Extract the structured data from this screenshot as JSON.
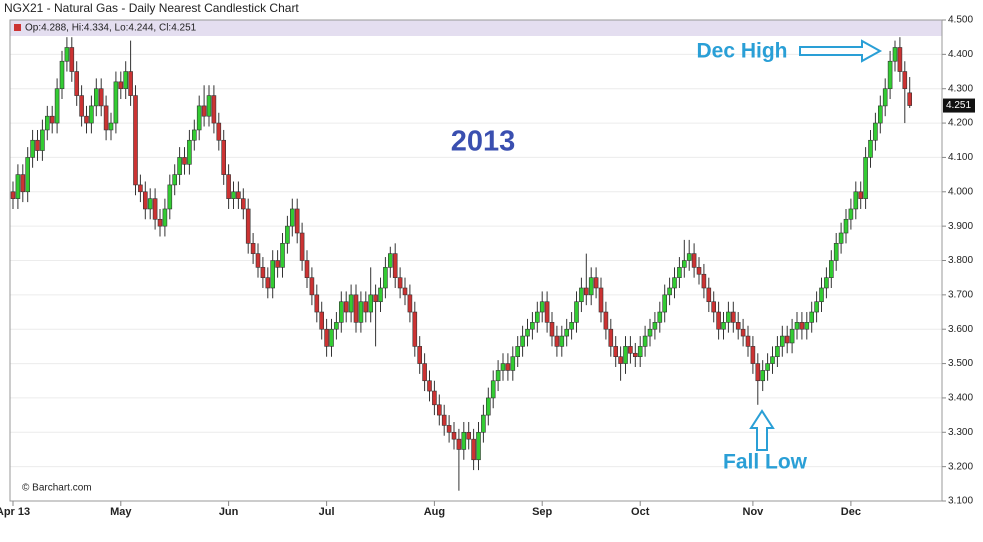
{
  "chart_data": {
    "type": "candlestick",
    "title": "NGX21 - Natural Gas - Daily Nearest Candlestick Chart",
    "info": "Op:4.288, Hi:4.334, Lo:4.244, Cl:4.251",
    "annotations": [
      "2013",
      "Dec High",
      "Fall Low"
    ],
    "source": "© Barchart.com",
    "up_color": "#33cc33",
    "down_color": "#cc3333",
    "ylim": [
      3.1,
      4.5
    ],
    "yticks": [
      {
        "value": 3.1,
        "label": "3.100"
      },
      {
        "value": 3.2,
        "label": "3.200"
      },
      {
        "value": 3.3,
        "label": "3.300"
      },
      {
        "value": 3.4,
        "label": "3.400"
      },
      {
        "value": 3.5,
        "label": "3.500"
      },
      {
        "value": 3.6,
        "label": "3.600"
      },
      {
        "value": 3.7,
        "label": "3.700"
      },
      {
        "value": 3.8,
        "label": "3.800"
      },
      {
        "value": 3.9,
        "label": "3.900"
      },
      {
        "value": 4.0,
        "label": "4.000"
      },
      {
        "value": 4.1,
        "label": "4.100"
      },
      {
        "value": 4.2,
        "label": "4.200"
      },
      {
        "value": 4.3,
        "label": "4.300"
      },
      {
        "value": 4.4,
        "label": "4.400"
      },
      {
        "value": 4.5,
        "label": "4.500"
      }
    ],
    "grid": true,
    "categories": [
      "Apr 13",
      null,
      null,
      null,
      null,
      null,
      null,
      null,
      null,
      null,
      null,
      null,
      null,
      null,
      null,
      null,
      null,
      null,
      null,
      null,
      null,
      null,
      "May",
      null,
      null,
      null,
      null,
      null,
      null,
      null,
      null,
      null,
      null,
      null,
      null,
      null,
      null,
      null,
      null,
      null,
      null,
      null,
      null,
      null,
      "Jun",
      null,
      null,
      null,
      null,
      null,
      null,
      null,
      null,
      null,
      null,
      null,
      null,
      null,
      null,
      null,
      null,
      null,
      null,
      null,
      "Jul",
      null,
      null,
      null,
      null,
      null,
      null,
      null,
      null,
      null,
      null,
      null,
      null,
      null,
      null,
      null,
      null,
      null,
      null,
      null,
      null,
      null,
      "Aug",
      null,
      null,
      null,
      null,
      null,
      null,
      null,
      null,
      null,
      null,
      null,
      null,
      null,
      null,
      null,
      null,
      null,
      null,
      null,
      null,
      null,
      "Sep",
      null,
      null,
      null,
      null,
      null,
      null,
      null,
      null,
      null,
      null,
      null,
      null,
      null,
      null,
      null,
      null,
      null,
      null,
      null,
      "Oct",
      null,
      null,
      null,
      null,
      null,
      null,
      null,
      null,
      null,
      null,
      null,
      null,
      null,
      null,
      null,
      null,
      null,
      null,
      null,
      null,
      null,
      null,
      "Nov",
      null,
      null,
      null,
      null,
      null,
      null,
      null,
      null,
      null,
      null,
      null,
      null,
      null,
      null,
      null,
      null,
      null,
      null,
      null,
      "Dec",
      null,
      null,
      null,
      null,
      null,
      null,
      null,
      null,
      null,
      null,
      null,
      null
    ],
    "ohlc": [
      [
        4.0,
        4.03,
        3.95,
        3.98
      ],
      [
        3.98,
        4.08,
        3.95,
        4.05
      ],
      [
        4.05,
        4.08,
        3.97,
        4.0
      ],
      [
        4.0,
        4.13,
        3.97,
        4.1
      ],
      [
        4.1,
        4.18,
        4.07,
        4.15
      ],
      [
        4.15,
        4.18,
        4.09,
        4.12
      ],
      [
        4.12,
        4.21,
        4.09,
        4.18
      ],
      [
        4.18,
        4.25,
        4.15,
        4.22
      ],
      [
        4.22,
        4.25,
        4.17,
        4.2
      ],
      [
        4.2,
        4.33,
        4.17,
        4.3
      ],
      [
        4.3,
        4.41,
        4.27,
        4.38
      ],
      [
        4.38,
        4.45,
        4.35,
        4.42
      ],
      [
        4.42,
        4.45,
        4.32,
        4.35
      ],
      [
        4.35,
        4.38,
        4.25,
        4.28
      ],
      [
        4.28,
        4.31,
        4.19,
        4.22
      ],
      [
        4.22,
        4.25,
        4.17,
        4.2
      ],
      [
        4.2,
        4.28,
        4.17,
        4.25
      ],
      [
        4.25,
        4.33,
        4.22,
        4.3
      ],
      [
        4.3,
        4.33,
        4.22,
        4.25
      ],
      [
        4.25,
        4.28,
        4.15,
        4.18
      ],
      [
        4.18,
        4.23,
        4.15,
        4.2
      ],
      [
        4.2,
        4.35,
        4.17,
        4.32
      ],
      [
        4.32,
        4.35,
        4.27,
        4.3
      ],
      [
        4.3,
        4.38,
        4.27,
        4.35
      ],
      [
        4.35,
        4.44,
        4.25,
        4.28
      ],
      [
        4.28,
        4.31,
        3.99,
        4.02
      ],
      [
        4.02,
        4.05,
        3.97,
        4.0
      ],
      [
        4.0,
        4.03,
        3.92,
        3.95
      ],
      [
        3.95,
        4.01,
        3.92,
        3.98
      ],
      [
        3.98,
        4.01,
        3.89,
        3.92
      ],
      [
        3.92,
        3.95,
        3.87,
        3.9
      ],
      [
        3.9,
        3.98,
        3.87,
        3.95
      ],
      [
        3.95,
        4.05,
        3.92,
        4.02
      ],
      [
        4.02,
        4.08,
        3.99,
        4.05
      ],
      [
        4.05,
        4.13,
        4.02,
        4.1
      ],
      [
        4.1,
        4.13,
        4.05,
        4.08
      ],
      [
        4.08,
        4.18,
        4.05,
        4.15
      ],
      [
        4.15,
        4.21,
        4.12,
        4.18
      ],
      [
        4.18,
        4.28,
        4.15,
        4.25
      ],
      [
        4.25,
        4.31,
        4.19,
        4.22
      ],
      [
        4.22,
        4.31,
        4.19,
        4.28
      ],
      [
        4.28,
        4.31,
        4.17,
        4.2
      ],
      [
        4.2,
        4.23,
        4.12,
        4.15
      ],
      [
        4.15,
        4.18,
        4.02,
        4.05
      ],
      [
        4.05,
        4.08,
        3.95,
        3.98
      ],
      [
        3.98,
        4.03,
        3.95,
        4.0
      ],
      [
        4.0,
        4.03,
        3.95,
        3.98
      ],
      [
        3.98,
        4.01,
        3.92,
        3.95
      ],
      [
        3.95,
        3.98,
        3.82,
        3.85
      ],
      [
        3.85,
        3.88,
        3.79,
        3.82
      ],
      [
        3.82,
        3.85,
        3.75,
        3.78
      ],
      [
        3.78,
        3.81,
        3.72,
        3.75
      ],
      [
        3.75,
        3.78,
        3.69,
        3.72
      ],
      [
        3.72,
        3.83,
        3.69,
        3.8
      ],
      [
        3.8,
        3.83,
        3.75,
        3.78
      ],
      [
        3.78,
        3.88,
        3.75,
        3.85
      ],
      [
        3.85,
        3.93,
        3.82,
        3.9
      ],
      [
        3.9,
        3.98,
        3.87,
        3.95
      ],
      [
        3.95,
        3.98,
        3.85,
        3.88
      ],
      [
        3.88,
        3.91,
        3.77,
        3.8
      ],
      [
        3.8,
        3.83,
        3.72,
        3.75
      ],
      [
        3.75,
        3.78,
        3.67,
        3.7
      ],
      [
        3.7,
        3.73,
        3.62,
        3.65
      ],
      [
        3.65,
        3.68,
        3.57,
        3.6
      ],
      [
        3.6,
        3.63,
        3.52,
        3.55
      ],
      [
        3.55,
        3.63,
        3.52,
        3.6
      ],
      [
        3.6,
        3.65,
        3.57,
        3.62
      ],
      [
        3.62,
        3.71,
        3.59,
        3.68
      ],
      [
        3.68,
        3.71,
        3.62,
        3.65
      ],
      [
        3.65,
        3.73,
        3.62,
        3.7
      ],
      [
        3.7,
        3.73,
        3.59,
        3.62
      ],
      [
        3.62,
        3.71,
        3.59,
        3.68
      ],
      [
        3.68,
        3.71,
        3.62,
        3.65
      ],
      [
        3.65,
        3.78,
        3.62,
        3.7
      ],
      [
        3.7,
        3.73,
        3.55,
        3.68
      ],
      [
        3.68,
        3.75,
        3.65,
        3.72
      ],
      [
        3.72,
        3.81,
        3.69,
        3.78
      ],
      [
        3.78,
        3.84,
        3.75,
        3.82
      ],
      [
        3.82,
        3.85,
        3.72,
        3.75
      ],
      [
        3.75,
        3.78,
        3.69,
        3.72
      ],
      [
        3.72,
        3.75,
        3.67,
        3.7
      ],
      [
        3.7,
        3.73,
        3.62,
        3.65
      ],
      [
        3.65,
        3.68,
        3.52,
        3.55
      ],
      [
        3.55,
        3.58,
        3.47,
        3.5
      ],
      [
        3.5,
        3.53,
        3.42,
        3.45
      ],
      [
        3.45,
        3.48,
        3.39,
        3.42
      ],
      [
        3.42,
        3.45,
        3.35,
        3.38
      ],
      [
        3.38,
        3.41,
        3.32,
        3.35
      ],
      [
        3.35,
        3.38,
        3.29,
        3.32
      ],
      [
        3.32,
        3.35,
        3.27,
        3.3
      ],
      [
        3.3,
        3.33,
        3.25,
        3.28
      ],
      [
        3.28,
        3.31,
        3.13,
        3.25
      ],
      [
        3.25,
        3.33,
        3.22,
        3.3
      ],
      [
        3.3,
        3.33,
        3.25,
        3.28
      ],
      [
        3.28,
        3.31,
        3.19,
        3.22
      ],
      [
        3.22,
        3.33,
        3.19,
        3.3
      ],
      [
        3.3,
        3.38,
        3.27,
        3.35
      ],
      [
        3.35,
        3.43,
        3.32,
        3.4
      ],
      [
        3.4,
        3.48,
        3.37,
        3.45
      ],
      [
        3.45,
        3.51,
        3.42,
        3.48
      ],
      [
        3.48,
        3.53,
        3.45,
        3.5
      ],
      [
        3.5,
        3.53,
        3.45,
        3.48
      ],
      [
        3.48,
        3.55,
        3.45,
        3.52
      ],
      [
        3.52,
        3.58,
        3.49,
        3.55
      ],
      [
        3.55,
        3.61,
        3.52,
        3.58
      ],
      [
        3.58,
        3.63,
        3.55,
        3.6
      ],
      [
        3.6,
        3.65,
        3.57,
        3.62
      ],
      [
        3.62,
        3.68,
        3.59,
        3.65
      ],
      [
        3.65,
        3.71,
        3.62,
        3.68
      ],
      [
        3.68,
        3.71,
        3.59,
        3.62
      ],
      [
        3.62,
        3.65,
        3.55,
        3.58
      ],
      [
        3.58,
        3.61,
        3.52,
        3.55
      ],
      [
        3.55,
        3.61,
        3.52,
        3.58
      ],
      [
        3.58,
        3.63,
        3.55,
        3.6
      ],
      [
        3.6,
        3.65,
        3.57,
        3.62
      ],
      [
        3.62,
        3.71,
        3.59,
        3.68
      ],
      [
        3.68,
        3.75,
        3.65,
        3.72
      ],
      [
        3.72,
        3.82,
        3.67,
        3.7
      ],
      [
        3.7,
        3.78,
        3.67,
        3.75
      ],
      [
        3.75,
        3.78,
        3.69,
        3.72
      ],
      [
        3.72,
        3.75,
        3.62,
        3.65
      ],
      [
        3.65,
        3.68,
        3.57,
        3.6
      ],
      [
        3.6,
        3.63,
        3.52,
        3.55
      ],
      [
        3.55,
        3.58,
        3.49,
        3.52
      ],
      [
        3.52,
        3.55,
        3.45,
        3.5
      ],
      [
        3.5,
        3.58,
        3.47,
        3.55
      ],
      [
        3.55,
        3.58,
        3.5,
        3.53
      ],
      [
        3.53,
        3.56,
        3.49,
        3.52
      ],
      [
        3.52,
        3.58,
        3.49,
        3.55
      ],
      [
        3.55,
        3.61,
        3.52,
        3.58
      ],
      [
        3.58,
        3.63,
        3.55,
        3.6
      ],
      [
        3.6,
        3.65,
        3.57,
        3.62
      ],
      [
        3.62,
        3.68,
        3.59,
        3.65
      ],
      [
        3.65,
        3.73,
        3.62,
        3.7
      ],
      [
        3.7,
        3.75,
        3.67,
        3.72
      ],
      [
        3.72,
        3.78,
        3.69,
        3.75
      ],
      [
        3.75,
        3.81,
        3.72,
        3.78
      ],
      [
        3.78,
        3.86,
        3.75,
        3.8
      ],
      [
        3.8,
        3.86,
        3.77,
        3.82
      ],
      [
        3.82,
        3.85,
        3.75,
        3.78
      ],
      [
        3.78,
        3.81,
        3.73,
        3.76
      ],
      [
        3.76,
        3.79,
        3.69,
        3.72
      ],
      [
        3.72,
        3.75,
        3.65,
        3.68
      ],
      [
        3.68,
        3.71,
        3.62,
        3.65
      ],
      [
        3.65,
        3.68,
        3.57,
        3.6
      ],
      [
        3.6,
        3.65,
        3.57,
        3.62
      ],
      [
        3.62,
        3.68,
        3.59,
        3.65
      ],
      [
        3.65,
        3.68,
        3.59,
        3.62
      ],
      [
        3.62,
        3.65,
        3.57,
        3.6
      ],
      [
        3.6,
        3.63,
        3.55,
        3.58
      ],
      [
        3.58,
        3.61,
        3.52,
        3.55
      ],
      [
        3.55,
        3.58,
        3.47,
        3.5
      ],
      [
        3.5,
        3.53,
        3.38,
        3.45
      ],
      [
        3.45,
        3.51,
        3.42,
        3.48
      ],
      [
        3.48,
        3.53,
        3.45,
        3.5
      ],
      [
        3.5,
        3.55,
        3.47,
        3.52
      ],
      [
        3.52,
        3.58,
        3.49,
        3.55
      ],
      [
        3.55,
        3.61,
        3.52,
        3.58
      ],
      [
        3.58,
        3.61,
        3.53,
        3.56
      ],
      [
        3.56,
        3.63,
        3.53,
        3.6
      ],
      [
        3.6,
        3.65,
        3.57,
        3.62
      ],
      [
        3.62,
        3.65,
        3.57,
        3.6
      ],
      [
        3.6,
        3.65,
        3.57,
        3.62
      ],
      [
        3.62,
        3.68,
        3.59,
        3.65
      ],
      [
        3.65,
        3.71,
        3.62,
        3.68
      ],
      [
        3.68,
        3.75,
        3.65,
        3.72
      ],
      [
        3.72,
        3.78,
        3.69,
        3.75
      ],
      [
        3.75,
        3.83,
        3.72,
        3.8
      ],
      [
        3.8,
        3.88,
        3.77,
        3.85
      ],
      [
        3.85,
        3.91,
        3.82,
        3.88
      ],
      [
        3.88,
        3.95,
        3.85,
        3.92
      ],
      [
        3.92,
        3.98,
        3.89,
        3.95
      ],
      [
        3.95,
        4.03,
        3.92,
        4.0
      ],
      [
        4.0,
        4.03,
        3.95,
        3.98
      ],
      [
        3.98,
        4.13,
        3.95,
        4.1
      ],
      [
        4.1,
        4.18,
        4.07,
        4.15
      ],
      [
        4.15,
        4.23,
        4.12,
        4.2
      ],
      [
        4.2,
        4.28,
        4.17,
        4.25
      ],
      [
        4.25,
        4.33,
        4.22,
        4.3
      ],
      [
        4.3,
        4.41,
        4.27,
        4.38
      ],
      [
        4.38,
        4.44,
        4.35,
        4.42
      ],
      [
        4.42,
        4.45,
        4.32,
        4.35
      ],
      [
        4.35,
        4.38,
        4.2,
        4.3
      ],
      [
        4.288,
        4.334,
        4.244,
        4.251
      ]
    ]
  }
}
